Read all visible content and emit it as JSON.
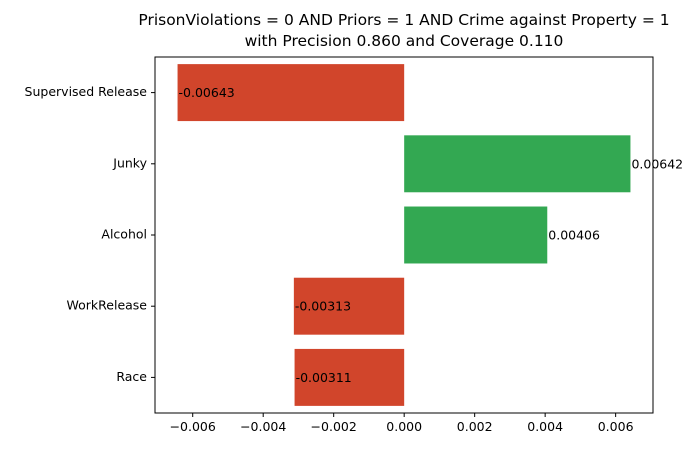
{
  "chart_data": {
    "type": "bar",
    "orientation": "horizontal",
    "title": [
      "PrisonViolations = 0 AND Priors = 1 AND Crime against Property = 1",
      "with Precision 0.860 and Coverage 0.110"
    ],
    "xlabel": "",
    "ylabel": "",
    "categories": [
      "Supervised Release",
      "Junky",
      "Alcohol",
      "WorkRelease",
      "Race"
    ],
    "values": [
      -0.00643,
      0.00642,
      0.00406,
      -0.00313,
      -0.00311
    ],
    "value_labels": [
      "-0.00643",
      "0.00642",
      "0.00406",
      "-0.00313",
      "-0.00311"
    ],
    "xlim": [
      -0.00707,
      0.00706
    ],
    "xticks": [
      -0.006,
      -0.004,
      -0.002,
      0.0,
      0.002,
      0.004,
      0.006
    ],
    "xtick_labels": [
      "−0.006",
      "−0.004",
      "−0.002",
      "0.000",
      "0.002",
      "0.004",
      "0.006"
    ],
    "grid": false,
    "legend": "none",
    "colors": {
      "positive": "#33a852",
      "negative": "#d1452b"
    }
  }
}
